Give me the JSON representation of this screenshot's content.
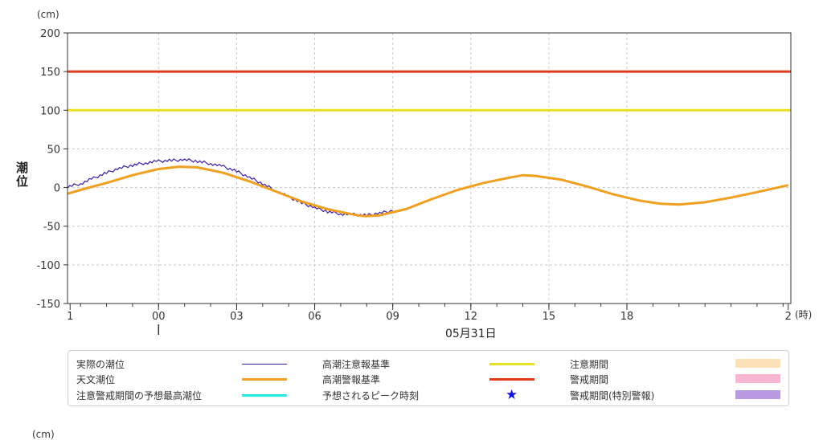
{
  "chart_data": {
    "type": "line",
    "y_unit": "(cm)",
    "x_unit": "(時)",
    "ylabel": "潮位",
    "ylim": [
      -150,
      200
    ],
    "y_ticks": [
      200,
      150,
      100,
      50,
      0,
      -50,
      -100,
      -150
    ],
    "y_tick_labels": [
      "200",
      "150",
      "100",
      "50",
      "0",
      "-50",
      "-100",
      "-150"
    ],
    "grid": true,
    "xlim": [
      -3.5,
      24.3
    ],
    "x_ticks": [
      {
        "hour": -3.4,
        "label": "1"
      },
      {
        "hour": 0,
        "label": "00"
      },
      {
        "hour": 3,
        "label": "03"
      },
      {
        "hour": 6,
        "label": "06"
      },
      {
        "hour": 9,
        "label": "09"
      },
      {
        "hour": 12,
        "label": "12"
      },
      {
        "hour": 15,
        "label": "15"
      },
      {
        "hour": 18,
        "label": "18"
      },
      {
        "hour": 24.2,
        "label": "2"
      }
    ],
    "date_label": "05月31日",
    "date_label_hour": 12,
    "day_marker_hour": 0,
    "series": [
      {
        "name": "実際の潮位",
        "color": "#3a1aa0",
        "x": [
          -3.5,
          -3.0,
          -2.5,
          -2.0,
          -1.5,
          -1.0,
          -0.5,
          0.0,
          0.5,
          1.0,
          1.5,
          2.0,
          2.5,
          3.0,
          3.5,
          4.0,
          4.5,
          5.0,
          5.5,
          6.0,
          6.5,
          7.0,
          7.5,
          8.0,
          8.5,
          9.0
        ],
        "y": [
          1,
          5,
          12,
          19,
          25,
          29,
          32,
          34,
          35,
          36,
          34,
          31,
          27,
          21,
          13,
          5,
          -4,
          -12,
          -20,
          -26,
          -31,
          -34,
          -35,
          -36,
          -33,
          -30
        ]
      },
      {
        "name": "天文潮位",
        "color": "#f0a020",
        "x": [
          -3.5,
          -3.0,
          -2.0,
          -1.0,
          0.0,
          0.8,
          1.5,
          2.5,
          3.5,
          4.5,
          5.5,
          6.5,
          7.5,
          7.9,
          8.5,
          9.5,
          10.5,
          11.5,
          12.5,
          13.5,
          14.0,
          14.5,
          15.5,
          16.5,
          17.5,
          18.5,
          19.3,
          20.0,
          21.0,
          22.0,
          23.0,
          24.2
        ],
        "y": [
          -8,
          -3,
          6,
          16,
          24,
          27,
          26,
          19,
          8,
          -5,
          -18,
          -28,
          -35,
          -37,
          -36,
          -28,
          -15,
          -3,
          6,
          13,
          16,
          15,
          10,
          1,
          -9,
          -17,
          -21,
          -22,
          -19,
          -13,
          -6,
          3
        ]
      },
      {
        "name": "高潮注意報基準",
        "color": "#e8e020",
        "value": 100
      },
      {
        "name": "高潮警報基準",
        "color": "#e03a1a",
        "value": 150
      }
    ]
  },
  "legend": [
    {
      "label": "実際の潮位",
      "type": "line",
      "color": "#3a1aa0"
    },
    {
      "label": "天文潮位",
      "type": "line",
      "color": "#f0a020"
    },
    {
      "label": "注意警戒期間の予想最高潮位",
      "type": "line",
      "color": "#22e8e8"
    },
    {
      "label": "高潮注意報基準",
      "type": "line",
      "color": "#e8e020"
    },
    {
      "label": "高潮警報基準",
      "type": "line",
      "color": "#e03a1a"
    },
    {
      "label": "予想されるピーク時刻",
      "type": "star",
      "color": "#1515d6",
      "symbol": "★"
    },
    {
      "label": "注意期間",
      "type": "box",
      "color": "#fde2b8"
    },
    {
      "label": "警戒期間",
      "type": "box",
      "color": "#f8b6d2"
    },
    {
      "label": "警戒期間(特別警報)",
      "type": "box",
      "color": "#b899e2"
    }
  ],
  "next_chart_unit": "(cm)"
}
